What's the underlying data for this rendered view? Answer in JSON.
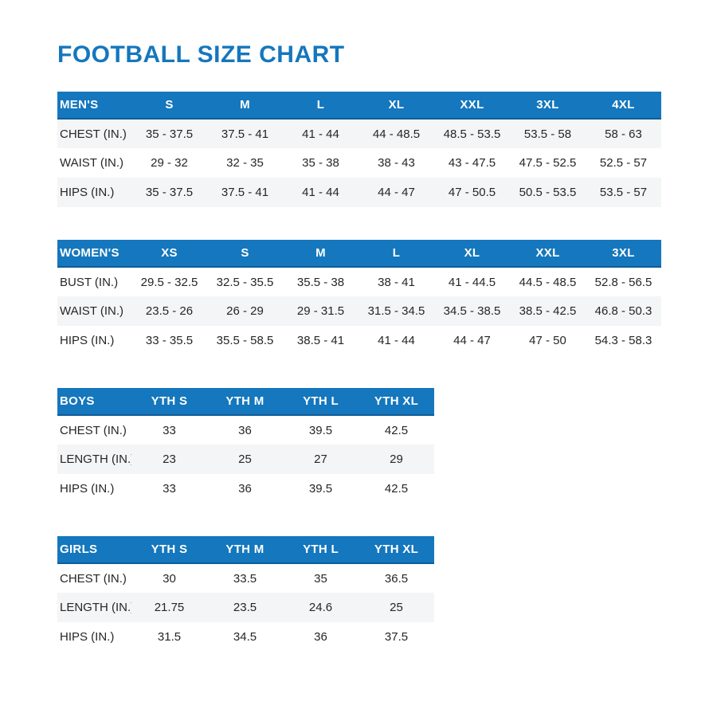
{
  "page": {
    "title": "FOOTBALL SIZE CHART"
  },
  "colors": {
    "accent": "#1577bd",
    "accent_dark": "#0f5c97",
    "header_text": "#ffffff",
    "row_shaded": "#f4f5f7",
    "body_text": "#262626"
  },
  "tables": [
    {
      "name": "MEN'S",
      "header": [
        "MEN'S",
        "S",
        "M",
        "L",
        "XL",
        "XXL",
        "3XL",
        "4XL"
      ],
      "rows": [
        {
          "label": "CHEST (IN.)",
          "values": [
            "35 - 37.5",
            "37.5 - 41",
            "41 - 44",
            "44 - 48.5",
            "48.5 - 53.5",
            "53.5 - 58",
            "58 - 63"
          ]
        },
        {
          "label": "WAIST (IN.)",
          "values": [
            "29 - 32",
            "32 - 35",
            "35 - 38",
            "38 - 43",
            "43 - 47.5",
            "47.5 - 52.5",
            "52.5 - 57"
          ]
        },
        {
          "label": "HIPS (IN.)",
          "values": [
            "35 - 37.5",
            "37.5 - 41",
            "41 - 44",
            "44 - 47",
            "47 - 50.5",
            "50.5 - 53.5",
            "53.5 - 57"
          ]
        }
      ]
    },
    {
      "name": "WOMEN'S",
      "header": [
        "WOMEN'S",
        "XS",
        "S",
        "M",
        "L",
        "XL",
        "XXL",
        "3XL"
      ],
      "rows": [
        {
          "label": "BUST (IN.)",
          "values": [
            "29.5 - 32.5",
            "32.5 - 35.5",
            "35.5 - 38",
            "38 - 41",
            "41 - 44.5",
            "44.5 - 48.5",
            "52.8 - 56.5"
          ]
        },
        {
          "label": "WAIST (IN.)",
          "values": [
            "23.5 - 26",
            "26 - 29",
            "29 - 31.5",
            "31.5 - 34.5",
            "34.5 - 38.5",
            "38.5 - 42.5",
            "46.8 - 50.3"
          ]
        },
        {
          "label": "HIPS (IN.)",
          "values": [
            "33 - 35.5",
            "35.5 - 58.5",
            "38.5 - 41",
            "41 - 44",
            "44 - 47",
            "47 - 50",
            "54.3 - 58.3"
          ]
        }
      ]
    },
    {
      "name": "BOYS",
      "header": [
        "BOYS",
        "YTH S",
        "YTH M",
        "YTH L",
        "YTH XL"
      ],
      "rows": [
        {
          "label": "CHEST (IN.)",
          "values": [
            "33",
            "36",
            "39.5",
            "42.5"
          ]
        },
        {
          "label": "LENGTH (IN.)",
          "values": [
            "23",
            "25",
            "27",
            "29"
          ]
        },
        {
          "label": "HIPS (IN.)",
          "values": [
            "33",
            "36",
            "39.5",
            "42.5"
          ]
        }
      ]
    },
    {
      "name": "GIRLS",
      "header": [
        "GIRLS",
        "YTH S",
        "YTH M",
        "YTH L",
        "YTH XL"
      ],
      "rows": [
        {
          "label": "CHEST (IN.)",
          "values": [
            "30",
            "33.5",
            "35",
            "36.5"
          ]
        },
        {
          "label": "LENGTH (IN.)",
          "values": [
            "21.75",
            "23.5",
            "24.6",
            "25"
          ]
        },
        {
          "label": "HIPS (IN.)",
          "values": [
            "31.5",
            "34.5",
            "36",
            "37.5"
          ]
        }
      ]
    }
  ]
}
